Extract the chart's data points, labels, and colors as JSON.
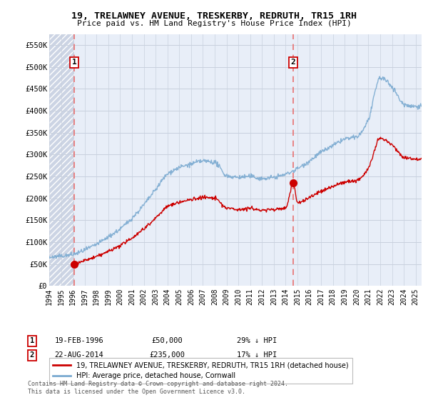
{
  "title": "19, TRELAWNEY AVENUE, TRESKERBY, REDRUTH, TR15 1RH",
  "subtitle": "Price paid vs. HM Land Registry's House Price Index (HPI)",
  "legend_line1": "19, TRELAWNEY AVENUE, TRESKERBY, REDRUTH, TR15 1RH (detached house)",
  "legend_line2": "HPI: Average price, detached house, Cornwall",
  "sale1_label": "1",
  "sale1_date": "19-FEB-1996",
  "sale1_price": "£50,000",
  "sale1_hpi": "29% ↓ HPI",
  "sale1_year": 1996.13,
  "sale1_value": 50000,
  "sale2_label": "2",
  "sale2_date": "22-AUG-2014",
  "sale2_price": "£235,000",
  "sale2_hpi": "17% ↓ HPI",
  "sale2_year": 2014.64,
  "sale2_value": 235000,
  "ylim": [
    0,
    575000
  ],
  "xlim_start": 1994.0,
  "xlim_end": 2025.5,
  "yticks": [
    0,
    50000,
    100000,
    150000,
    200000,
    250000,
    300000,
    350000,
    400000,
    450000,
    500000,
    550000
  ],
  "ytick_labels": [
    "£0",
    "£50K",
    "£100K",
    "£150K",
    "£200K",
    "£250K",
    "£300K",
    "£350K",
    "£400K",
    "£450K",
    "£500K",
    "£550K"
  ],
  "xticks": [
    1994,
    1995,
    1996,
    1997,
    1998,
    1999,
    2000,
    2001,
    2002,
    2003,
    2004,
    2005,
    2006,
    2007,
    2008,
    2009,
    2010,
    2011,
    2012,
    2013,
    2014,
    2015,
    2016,
    2017,
    2018,
    2019,
    2020,
    2021,
    2022,
    2023,
    2024,
    2025
  ],
  "bg_color": "#e8eef8",
  "hatch_color": "#ccd4e4",
  "grid_color": "#c8d0de",
  "red_line_color": "#cc0000",
  "blue_line_color": "#7aaad0",
  "dashed_line_color": "#e87070",
  "sale_marker_color": "#cc0000",
  "footer": "Contains HM Land Registry data © Crown copyright and database right 2024.\nThis data is licensed under the Open Government Licence v3.0.",
  "hpi_knots_x": [
    1994.0,
    1995.0,
    1996.0,
    1997.0,
    1998.0,
    1999.0,
    2000.0,
    2001.0,
    2002.0,
    2003.0,
    2004.0,
    2005.0,
    2006.0,
    2007.0,
    2008.0,
    2009.0,
    2010.0,
    2011.0,
    2012.0,
    2013.0,
    2014.0,
    2015.0,
    2016.0,
    2017.0,
    2018.0,
    2019.0,
    2020.0,
    2021.0,
    2022.0,
    2023.0,
    2024.0,
    2025.0
  ],
  "hpi_knots_y": [
    65000,
    68000,
    72000,
    82000,
    95000,
    112000,
    130000,
    155000,
    185000,
    220000,
    255000,
    270000,
    278000,
    285000,
    282000,
    252000,
    248000,
    250000,
    245000,
    248000,
    255000,
    268000,
    285000,
    305000,
    320000,
    335000,
    340000,
    380000,
    475000,
    455000,
    415000,
    410000
  ],
  "red_knots_x": [
    1996.13,
    1997.0,
    1998.0,
    1999.0,
    2000.0,
    2001.0,
    2002.0,
    2003.0,
    2004.0,
    2005.0,
    2006.0,
    2007.0,
    2008.0,
    2009.0,
    2010.0,
    2011.0,
    2012.0,
    2013.0,
    2014.0,
    2014.64,
    2015.0,
    2016.0,
    2017.0,
    2018.0,
    2019.0,
    2020.0,
    2021.0,
    2022.0,
    2023.0,
    2024.0,
    2025.0
  ],
  "red_knots_y": [
    50000,
    58000,
    67000,
    79000,
    92000,
    110000,
    131000,
    155000,
    181000,
    191000,
    197000,
    202000,
    200000,
    178000,
    175000,
    177000,
    173000,
    175000,
    178000,
    235000,
    190000,
    202000,
    216000,
    227000,
    237000,
    241000,
    269000,
    336000,
    322000,
    294000,
    290000
  ]
}
